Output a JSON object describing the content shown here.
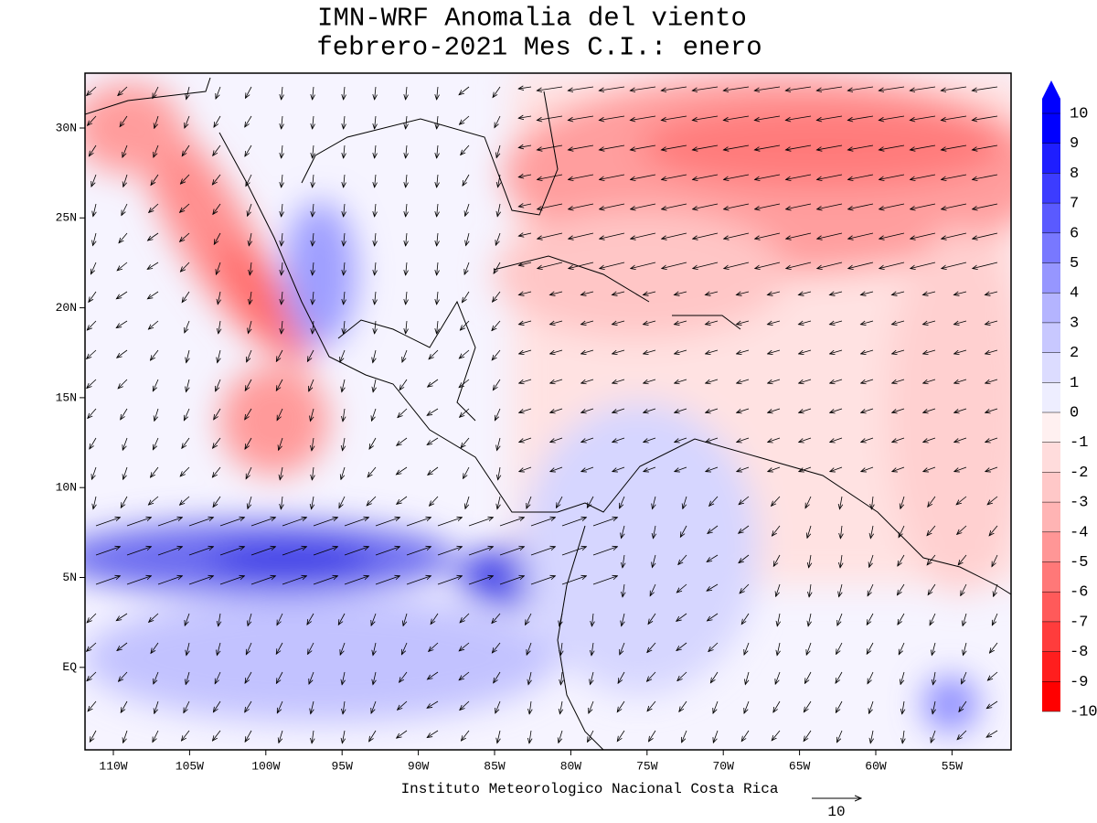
{
  "header": {
    "title": "IMN-WRF Anomalia del viento",
    "subtitle": "febrero-2021 Mes C.I.: enero"
  },
  "map": {
    "lon_ticks": [
      "110W",
      "105W",
      "100W",
      "95W",
      "90W",
      "85W",
      "80W",
      "75W",
      "70W",
      "65W",
      "60W",
      "55W"
    ],
    "lat_ticks": [
      "30N",
      "25N",
      "20N",
      "15N",
      "10N",
      "5N",
      "EQ"
    ],
    "footer": "Instituto Meteorologico Nacional Costa Rica",
    "reference_vector": "10"
  },
  "colorbar": {
    "levels": [
      10,
      9,
      8,
      7,
      6,
      5,
      4,
      3,
      2,
      1,
      0,
      -1,
      -2,
      -3,
      -4,
      -5,
      -6,
      -7,
      -8,
      -9,
      {
        "value": -10,
        "label": "-10"
      }
    ],
    "colors": [
      "#0000ff",
      "#1e1eff",
      "#3c3cff",
      "#5a5aff",
      "#7878ff",
      "#9696ff",
      "#b4b4ff",
      "#c8c8ff",
      "#dcdcff",
      "#eeeeff",
      "#fff0f0",
      "#ffdcdc",
      "#ffc8c8",
      "#ffb4b4",
      "#ff9696",
      "#ff7878",
      "#ff5a5a",
      "#ff3c3c",
      "#ff1e1e",
      "#ff0000"
    ]
  }
}
